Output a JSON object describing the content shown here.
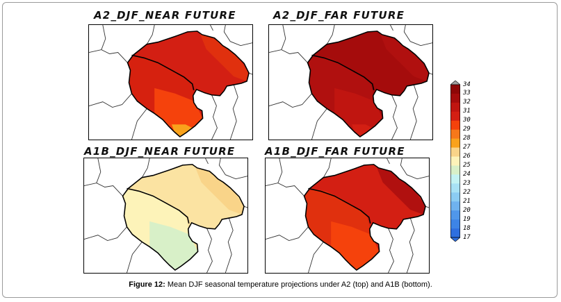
{
  "panels": [
    {
      "id": "a2-near",
      "title": "A2_DJF_NEAR FUTURE",
      "fills": {
        "north": "#d31f13",
        "southwest": "#d6210f",
        "mid_south": "#f5420c",
        "south_tip": "#f9a21c",
        "band": "#e0300e"
      }
    },
    {
      "id": "a2-far",
      "title": "A2_DJF_FAR FUTURE",
      "fills": {
        "north": "#a50c0c",
        "southwest": "#b0100f",
        "mid_south": "#c01510",
        "south_tip": "#d31f13",
        "band": "#b0100f"
      }
    },
    {
      "id": "a1b-near",
      "title": "A1B_DJF_NEAR FUTURE",
      "fills": {
        "north": "#fbe3a2",
        "southwest": "#fdf3b9",
        "mid_south": "#d8f0c8",
        "south_tip": "#d8f0c8",
        "band": "#f9d489"
      }
    },
    {
      "id": "a1b-far",
      "title": "A1B_DJF_FAR FUTURE",
      "fills": {
        "north": "#d31f13",
        "southwest": "#e0300e",
        "mid_south": "#f5420c",
        "south_tip": "#f5420c",
        "band": "#b0100f"
      }
    }
  ],
  "colorbar": {
    "labels": [
      "34",
      "33",
      "32",
      "31",
      "30",
      "29",
      "28",
      "27",
      "26",
      "25",
      "24",
      "23",
      "22",
      "21",
      "20",
      "19",
      "18",
      "17"
    ],
    "colors": [
      "#8e0707",
      "#a50c0c",
      "#c01510",
      "#d31f13",
      "#f5420c",
      "#f7781a",
      "#f9a21c",
      "#f9d489",
      "#fdf3b9",
      "#d8f0c8",
      "#c3f3f3",
      "#a8e2f5",
      "#8bccf3",
      "#6fb2ef",
      "#5097ea",
      "#3d84e6",
      "#2e6fe0"
    ],
    "top_arrow_color": "#a0a0a0",
    "bottom_arrow_color": "#2e6fe0"
  },
  "caption": {
    "label": "Figure 12:",
    "text": " Mean DJF seasonal temperature projections under A2 (top) and A1B (bottom)."
  }
}
